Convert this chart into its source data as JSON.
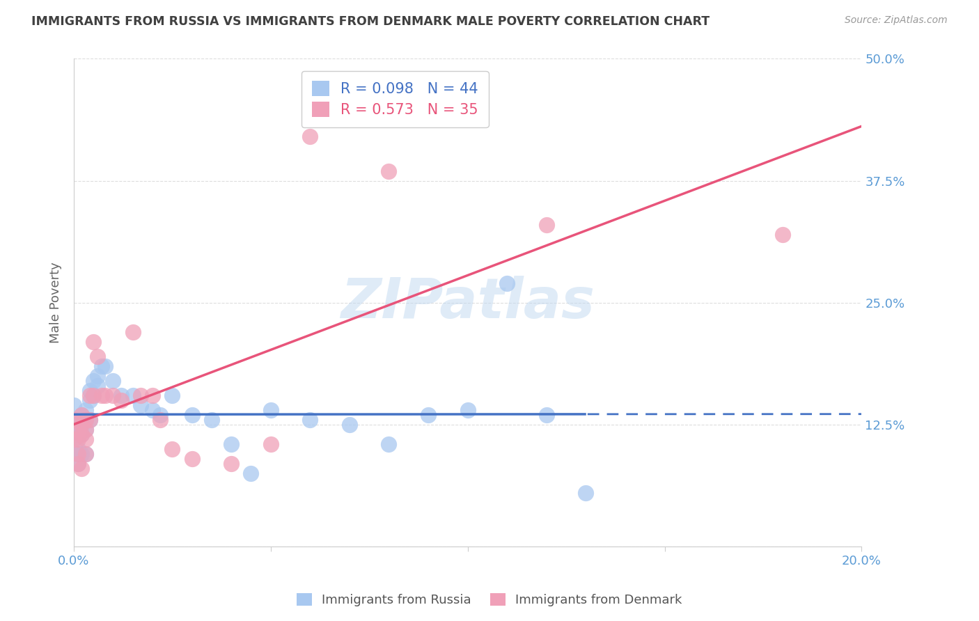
{
  "title": "IMMIGRANTS FROM RUSSIA VS IMMIGRANTS FROM DENMARK MALE POVERTY CORRELATION CHART",
  "source": "Source: ZipAtlas.com",
  "ylabel": "Male Poverty",
  "yticks": [
    0.0,
    0.125,
    0.25,
    0.375,
    0.5
  ],
  "ytick_labels": [
    "",
    "12.5%",
    "25.0%",
    "37.5%",
    "50.0%"
  ],
  "xlim": [
    0.0,
    0.2
  ],
  "ylim": [
    0.0,
    0.5
  ],
  "russia_color": "#a8c8f0",
  "denmark_color": "#f0a0b8",
  "russia_line_color": "#4472C4",
  "denmark_line_color": "#E8547A",
  "russia_R": 0.098,
  "russia_N": 44,
  "denmark_R": 0.573,
  "denmark_N": 35,
  "russia_label": "Immigrants from Russia",
  "denmark_label": "Immigrants from Denmark",
  "watermark": "ZIPatlas",
  "russia_points_x": [
    0.0,
    0.0,
    0.001,
    0.001,
    0.001,
    0.001,
    0.001,
    0.002,
    0.002,
    0.002,
    0.002,
    0.003,
    0.003,
    0.003,
    0.003,
    0.004,
    0.004,
    0.004,
    0.005,
    0.005,
    0.006,
    0.006,
    0.007,
    0.008,
    0.01,
    0.012,
    0.015,
    0.017,
    0.02,
    0.022,
    0.025,
    0.03,
    0.035,
    0.04,
    0.045,
    0.05,
    0.06,
    0.07,
    0.08,
    0.09,
    0.1,
    0.11,
    0.12,
    0.13
  ],
  "russia_points_y": [
    0.13,
    0.145,
    0.12,
    0.115,
    0.1,
    0.095,
    0.085,
    0.135,
    0.125,
    0.115,
    0.095,
    0.14,
    0.13,
    0.12,
    0.095,
    0.16,
    0.15,
    0.13,
    0.17,
    0.155,
    0.175,
    0.165,
    0.185,
    0.185,
    0.17,
    0.155,
    0.155,
    0.145,
    0.14,
    0.135,
    0.155,
    0.135,
    0.13,
    0.105,
    0.075,
    0.14,
    0.13,
    0.125,
    0.105,
    0.135,
    0.14,
    0.27,
    0.135,
    0.055
  ],
  "denmark_points_x": [
    0.0,
    0.0,
    0.001,
    0.001,
    0.001,
    0.001,
    0.002,
    0.002,
    0.002,
    0.002,
    0.003,
    0.003,
    0.003,
    0.003,
    0.004,
    0.004,
    0.005,
    0.005,
    0.006,
    0.007,
    0.008,
    0.01,
    0.012,
    0.015,
    0.017,
    0.02,
    0.022,
    0.025,
    0.03,
    0.04,
    0.05,
    0.06,
    0.08,
    0.12,
    0.18
  ],
  "denmark_points_y": [
    0.13,
    0.11,
    0.12,
    0.11,
    0.095,
    0.085,
    0.135,
    0.125,
    0.115,
    0.08,
    0.13,
    0.12,
    0.11,
    0.095,
    0.155,
    0.13,
    0.21,
    0.155,
    0.195,
    0.155,
    0.155,
    0.155,
    0.15,
    0.22,
    0.155,
    0.155,
    0.13,
    0.1,
    0.09,
    0.085,
    0.105,
    0.42,
    0.385,
    0.33,
    0.32
  ],
  "background_color": "#ffffff",
  "grid_color": "#dddddd",
  "axis_label_color": "#5B9BD5",
  "title_color": "#404040"
}
